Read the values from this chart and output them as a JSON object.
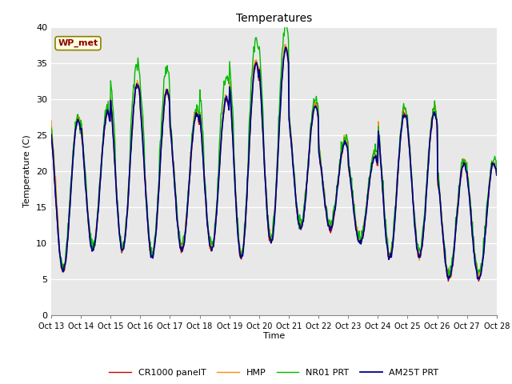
{
  "title": "Temperatures",
  "xlabel": "Time",
  "ylabel": "Temperature (C)",
  "annotation": "WP_met",
  "annotation_color": "#8B0000",
  "annotation_bg": "#FFFFE0",
  "annotation_border": "#8B8000",
  "ylim": [
    0,
    40
  ],
  "yticks": [
    0,
    5,
    10,
    15,
    20,
    25,
    30,
    35,
    40
  ],
  "xtick_labels": [
    "Oct 13",
    "Oct 14",
    "Oct 15",
    "Oct 16",
    "Oct 17",
    "Oct 18",
    "Oct 19",
    "Oct 20",
    "Oct 21",
    "Oct 22",
    "Oct 23",
    "Oct 24",
    "Oct 25",
    "Oct 26",
    "Oct 27",
    "Oct 28"
  ],
  "bg_color": "#E8E8E8",
  "series_colors": [
    "#CC0000",
    "#FF8C00",
    "#00BB00",
    "#00008B"
  ],
  "series_names": [
    "CR1000 panelT",
    "HMP",
    "NR01 PRT",
    "AM25T PRT"
  ],
  "series_lw": [
    1.0,
    1.0,
    1.0,
    1.3
  ],
  "day_maxima": [
    27,
    28,
    32,
    31,
    28,
    30,
    35,
    37,
    29,
    24,
    22,
    28,
    28,
    21,
    21
  ],
  "day_minima": [
    6,
    9,
    9,
    8,
    9,
    9,
    8,
    10,
    12,
    12,
    10,
    8,
    8,
    5,
    5
  ],
  "n_days": 15,
  "pts_per_day": 48
}
